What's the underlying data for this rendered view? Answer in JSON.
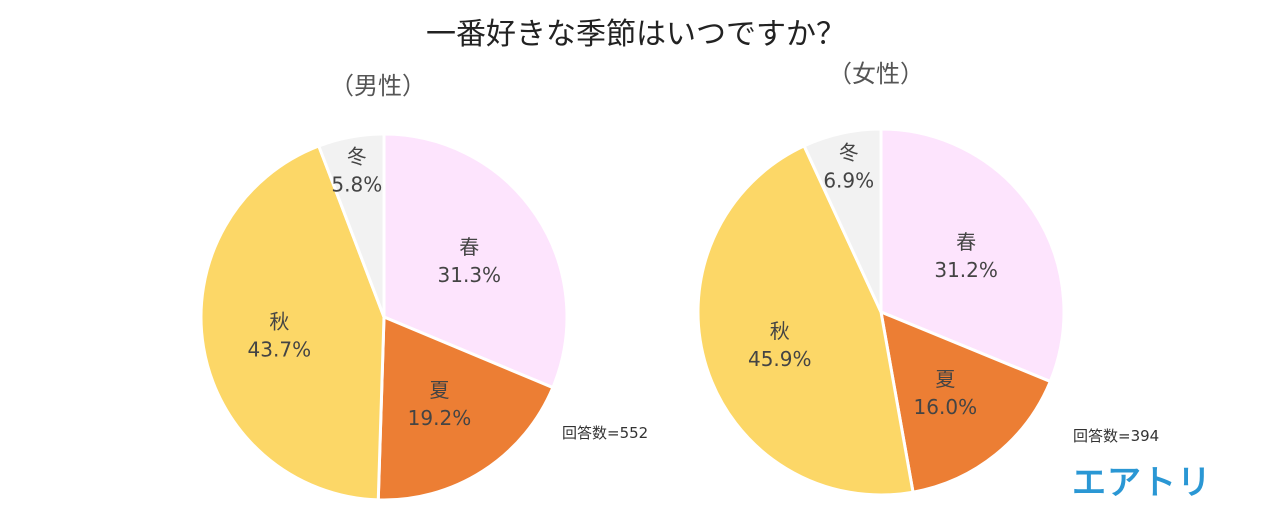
{
  "title": "一番好きな季節はいつですか？",
  "logo": "エアトリ",
  "chart_data": [
    {
      "type": "pie",
      "subtitle": "（男性）",
      "count_label": "回答数=552",
      "slices": [
        {
          "name": "春",
          "value": 31.3,
          "label": "31.3%",
          "color": "#fde4fd"
        },
        {
          "name": "夏",
          "value": 19.2,
          "label": "19.2%",
          "color": "#ec7e34"
        },
        {
          "name": "秋",
          "value": 43.7,
          "label": "43.7%",
          "color": "#fcd767"
        },
        {
          "name": "冬",
          "value": 5.8,
          "label": "5.8%",
          "color": "#f2f2f2"
        }
      ]
    },
    {
      "type": "pie",
      "subtitle": "（女性）",
      "count_label": "回答数=394",
      "slices": [
        {
          "name": "春",
          "value": 31.2,
          "label": "31.2%",
          "color": "#fde4fd"
        },
        {
          "name": "夏",
          "value": 16.0,
          "label": "16.0%",
          "color": "#ec7e34"
        },
        {
          "name": "秋",
          "value": 45.9,
          "label": "45.9%",
          "color": "#fcd767"
        },
        {
          "name": "冬",
          "value": 6.9,
          "label": "6.9%",
          "color": "#f2f2f2"
        }
      ]
    }
  ]
}
